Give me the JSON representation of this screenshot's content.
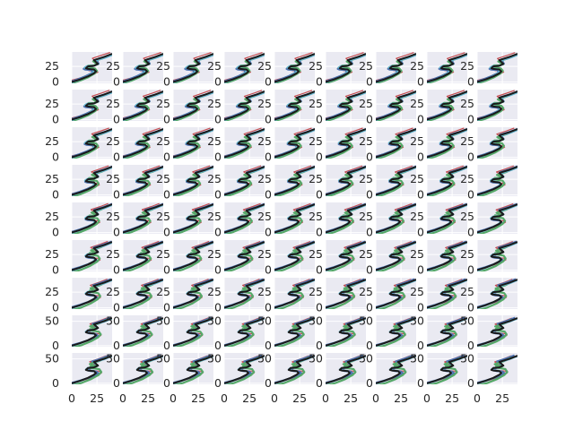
{
  "chart_data": {
    "type": "line",
    "layout": {
      "rows": 9,
      "cols": 9,
      "sharex": true,
      "sharey": false
    },
    "title": "",
    "xlabel": "",
    "ylabel": "",
    "style": {
      "panel_background": "#eaeaf2",
      "grid_color": "#ffffff",
      "grid": true,
      "legend": "none"
    },
    "x_ticks": [
      "0",
      "25"
    ],
    "y_ticks_upper_rows": [
      "0",
      "25"
    ],
    "y_ticks_lower_rows": [
      "0",
      "50"
    ],
    "series_colors": {
      "base": "#1a1a1a",
      "red": "#c44e52",
      "blue": "#4c72b0",
      "green": "#55a868",
      "teal": "#64b5cd"
    },
    "base_curve": {
      "name": "",
      "x": [
        0,
        8,
        16,
        22,
        24,
        22,
        16,
        14,
        16,
        22,
        26,
        24,
        22,
        32,
        40
      ],
      "y": [
        0,
        4,
        9,
        14,
        17,
        20,
        21,
        22,
        25,
        26,
        29,
        32,
        35,
        40,
        45
      ]
    },
    "colored_curves_note": "",
    "panels_upper": {
      "ylim": [
        -2,
        48
      ],
      "xlim": [
        0,
        40
      ]
    },
    "panels_lower": {
      "ylim": [
        -2,
        62
      ],
      "xlim": [
        0,
        40
      ]
    }
  }
}
